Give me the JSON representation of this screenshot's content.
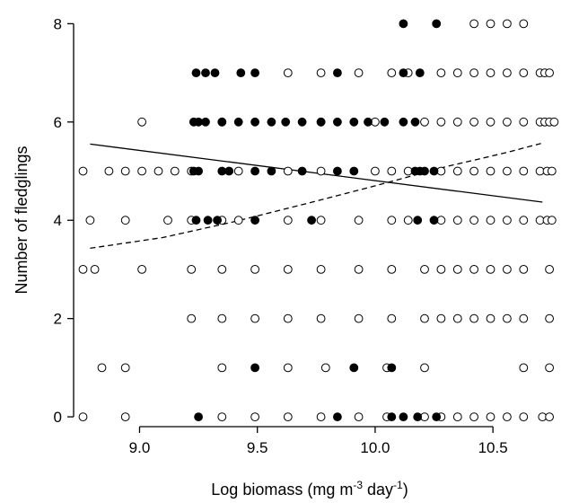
{
  "chart_data": {
    "type": "scatter",
    "title": "",
    "xlabel": {
      "main": "Log biomass (mg m",
      "sup1": "-3",
      "mid": " day",
      "sup2": "-1",
      "end": ")"
    },
    "ylabel": "Number of fledglings",
    "xlim": [
      8.72,
      10.77
    ],
    "ylim": [
      -0.2,
      8.3
    ],
    "xticks": [
      9.0,
      9.5,
      10.0,
      10.5
    ],
    "xtick_labels": [
      "9.0",
      "9.5",
      "10.0",
      "10.5"
    ],
    "yticks": [
      0,
      2,
      4,
      6,
      8
    ],
    "ytick_labels": [
      "0",
      "2",
      "4",
      "6",
      "8"
    ],
    "grid": false,
    "marker_colors": {
      "open": "#ffffff",
      "filled": "#000000",
      "stroke": "#000000"
    },
    "series": [
      {
        "marker": "open",
        "points": [
          [
            8.76,
            0
          ],
          [
            8.94,
            0
          ],
          [
            9.35,
            0
          ],
          [
            9.49,
            0
          ],
          [
            9.63,
            0
          ],
          [
            9.77,
            0
          ],
          [
            9.93,
            0
          ],
          [
            10.05,
            0
          ],
          [
            10.21,
            0
          ],
          [
            10.28,
            0
          ],
          [
            10.35,
            0
          ],
          [
            10.42,
            0
          ],
          [
            10.49,
            0
          ],
          [
            10.56,
            0
          ],
          [
            10.63,
            0
          ],
          [
            10.71,
            0
          ],
          [
            10.74,
            0
          ],
          [
            8.84,
            1
          ],
          [
            8.94,
            1
          ],
          [
            9.35,
            1
          ],
          [
            9.63,
            1
          ],
          [
            9.79,
            1
          ],
          [
            10.05,
            1
          ],
          [
            10.21,
            1
          ],
          [
            10.63,
            1
          ],
          [
            10.74,
            1
          ],
          [
            9.22,
            2
          ],
          [
            9.35,
            2
          ],
          [
            9.49,
            2
          ],
          [
            9.63,
            2
          ],
          [
            9.77,
            2
          ],
          [
            9.93,
            2
          ],
          [
            10.07,
            2
          ],
          [
            10.21,
            2
          ],
          [
            10.28,
            2
          ],
          [
            10.35,
            2
          ],
          [
            10.42,
            2
          ],
          [
            10.49,
            2
          ],
          [
            10.56,
            2
          ],
          [
            10.63,
            2
          ],
          [
            10.74,
            2
          ],
          [
            8.76,
            3
          ],
          [
            8.81,
            3
          ],
          [
            9.01,
            3
          ],
          [
            9.22,
            3
          ],
          [
            9.35,
            3
          ],
          [
            9.49,
            3
          ],
          [
            9.63,
            3
          ],
          [
            9.77,
            3
          ],
          [
            9.93,
            3
          ],
          [
            10.07,
            3
          ],
          [
            10.21,
            3
          ],
          [
            10.28,
            3
          ],
          [
            10.35,
            3
          ],
          [
            10.42,
            3
          ],
          [
            10.49,
            3
          ],
          [
            10.56,
            3
          ],
          [
            10.63,
            3
          ],
          [
            10.74,
            3
          ],
          [
            8.79,
            4
          ],
          [
            8.94,
            4
          ],
          [
            9.12,
            4
          ],
          [
            9.22,
            4
          ],
          [
            9.35,
            4
          ],
          [
            9.42,
            4
          ],
          [
            9.63,
            4
          ],
          [
            9.77,
            4
          ],
          [
            9.93,
            4
          ],
          [
            10.07,
            4
          ],
          [
            10.14,
            4
          ],
          [
            10.28,
            4
          ],
          [
            10.35,
            4
          ],
          [
            10.42,
            4
          ],
          [
            10.49,
            4
          ],
          [
            10.56,
            4
          ],
          [
            10.63,
            4
          ],
          [
            10.7,
            4
          ],
          [
            10.73,
            4
          ],
          [
            10.75,
            4
          ],
          [
            8.76,
            5
          ],
          [
            8.87,
            5
          ],
          [
            8.94,
            5
          ],
          [
            9.01,
            5
          ],
          [
            9.08,
            5
          ],
          [
            9.15,
            5
          ],
          [
            9.22,
            5
          ],
          [
            9.42,
            5
          ],
          [
            9.63,
            5
          ],
          [
            9.77,
            5
          ],
          [
            10.0,
            5
          ],
          [
            10.07,
            5
          ],
          [
            10.14,
            5
          ],
          [
            10.28,
            5
          ],
          [
            10.35,
            5
          ],
          [
            10.42,
            5
          ],
          [
            10.49,
            5
          ],
          [
            10.56,
            5
          ],
          [
            10.63,
            5
          ],
          [
            10.7,
            5
          ],
          [
            10.73,
            5
          ],
          [
            10.75,
            5
          ],
          [
            9.01,
            6
          ],
          [
            9.35,
            6
          ],
          [
            9.77,
            6
          ],
          [
            10.0,
            6
          ],
          [
            10.21,
            6
          ],
          [
            10.28,
            6
          ],
          [
            10.35,
            6
          ],
          [
            10.42,
            6
          ],
          [
            10.49,
            6
          ],
          [
            10.56,
            6
          ],
          [
            10.63,
            6
          ],
          [
            10.7,
            6
          ],
          [
            10.72,
            6
          ],
          [
            10.74,
            6
          ],
          [
            10.76,
            6
          ],
          [
            9.63,
            7
          ],
          [
            9.77,
            7
          ],
          [
            9.93,
            7
          ],
          [
            10.07,
            7
          ],
          [
            10.14,
            7
          ],
          [
            10.28,
            7
          ],
          [
            10.35,
            7
          ],
          [
            10.42,
            7
          ],
          [
            10.49,
            7
          ],
          [
            10.56,
            7
          ],
          [
            10.63,
            7
          ],
          [
            10.7,
            7
          ],
          [
            10.72,
            7
          ],
          [
            10.74,
            7
          ],
          [
            10.42,
            8
          ],
          [
            10.49,
            8
          ],
          [
            10.56,
            8
          ],
          [
            10.63,
            8
          ]
        ]
      },
      {
        "marker": "filled",
        "points": [
          [
            9.25,
            0
          ],
          [
            9.84,
            0
          ],
          [
            10.07,
            0
          ],
          [
            10.12,
            0
          ],
          [
            10.18,
            0
          ],
          [
            10.26,
            0
          ],
          [
            9.49,
            1
          ],
          [
            9.91,
            1
          ],
          [
            10.07,
            1
          ],
          [
            9.24,
            4
          ],
          [
            9.29,
            4
          ],
          [
            9.33,
            4
          ],
          [
            9.49,
            4
          ],
          [
            9.73,
            4
          ],
          [
            10.18,
            4
          ],
          [
            10.25,
            4
          ],
          [
            9.23,
            5
          ],
          [
            9.25,
            5
          ],
          [
            9.35,
            5
          ],
          [
            9.38,
            5
          ],
          [
            9.49,
            5
          ],
          [
            9.56,
            5
          ],
          [
            9.69,
            5
          ],
          [
            9.84,
            5
          ],
          [
            9.91,
            5
          ],
          [
            10.17,
            5
          ],
          [
            10.19,
            5
          ],
          [
            10.21,
            5
          ],
          [
            10.25,
            5
          ],
          [
            9.23,
            6
          ],
          [
            9.25,
            6
          ],
          [
            9.28,
            6
          ],
          [
            9.35,
            6
          ],
          [
            9.42,
            6
          ],
          [
            9.49,
            6
          ],
          [
            9.56,
            6
          ],
          [
            9.62,
            6
          ],
          [
            9.69,
            6
          ],
          [
            9.77,
            6
          ],
          [
            9.84,
            6
          ],
          [
            9.91,
            6
          ],
          [
            9.97,
            6
          ],
          [
            10.04,
            6
          ],
          [
            10.12,
            6
          ],
          [
            10.17,
            6
          ],
          [
            9.24,
            7
          ],
          [
            9.28,
            7
          ],
          [
            9.32,
            7
          ],
          [
            9.43,
            7
          ],
          [
            9.49,
            7
          ],
          [
            9.84,
            7
          ],
          [
            10.12,
            7
          ],
          [
            10.19,
            7
          ],
          [
            10.12,
            8
          ],
          [
            10.26,
            8
          ]
        ]
      }
    ],
    "lines": [
      {
        "style": "solid",
        "points": [
          [
            8.79,
            5.55
          ],
          [
            10.71,
            4.37
          ]
        ]
      },
      {
        "style": "dashed",
        "points": [
          [
            8.79,
            3.43
          ],
          [
            9.1,
            3.65
          ],
          [
            9.4,
            3.97
          ],
          [
            9.7,
            4.33
          ],
          [
            10.0,
            4.7
          ],
          [
            10.3,
            5.09
          ],
          [
            10.55,
            5.37
          ],
          [
            10.71,
            5.57
          ]
        ]
      }
    ]
  }
}
